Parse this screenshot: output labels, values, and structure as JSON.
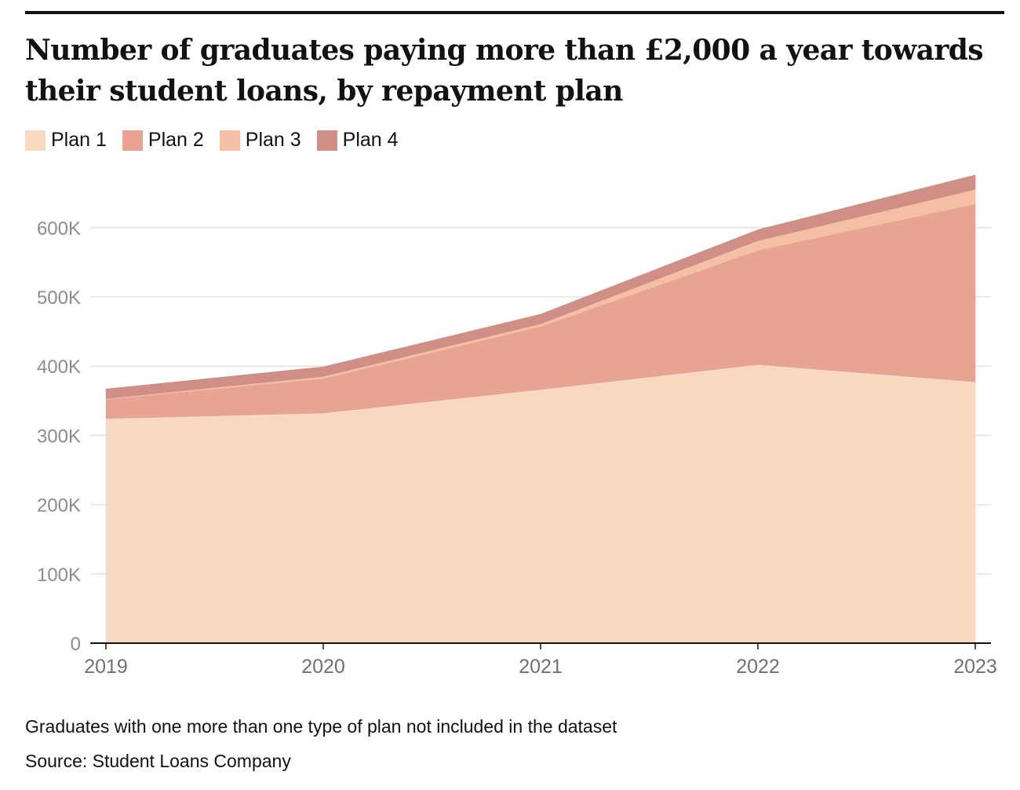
{
  "title": "Number of graduates paying more than £2,000 a year towards their student loans, by repayment plan",
  "legend": [
    {
      "label": "Plan 1",
      "color": "#f7d9c1"
    },
    {
      "label": "Plan 2",
      "color": "#e8a493"
    },
    {
      "label": "Plan 3",
      "color": "#f5bfa4"
    },
    {
      "label": "Plan 4",
      "color": "#cf8f87"
    }
  ],
  "footnote": "Graduates with one more than one type of plan not included in the dataset",
  "source": "Source: Student Loans Company",
  "chart_data": {
    "type": "area",
    "stacked": true,
    "title": "Number of graduates paying more than £2,000 a year towards their student loans, by repayment plan",
    "x": [
      "2019",
      "2020",
      "2021",
      "2022",
      "2023"
    ],
    "series": [
      {
        "name": "Plan 1",
        "color": "#f7d9c1",
        "values": [
          324000,
          332000,
          366000,
          402000,
          377000
        ]
      },
      {
        "name": "Plan 2",
        "color": "#e8a493",
        "values": [
          28000,
          50000,
          91000,
          165000,
          257000
        ]
      },
      {
        "name": "Plan 3",
        "color": "#f5bfa4",
        "values": [
          1000,
          3000,
          4000,
          14000,
          21000
        ]
      },
      {
        "name": "Plan 4",
        "color": "#cf8f87",
        "values": [
          14000,
          14000,
          14000,
          16000,
          21000
        ]
      }
    ],
    "ylim": [
      0,
      700000
    ],
    "yticks": [
      0,
      100000,
      200000,
      300000,
      400000,
      500000,
      600000
    ],
    "ytick_labels": [
      "0",
      "100K",
      "200K",
      "300K",
      "400K",
      "500K",
      "600K"
    ],
    "xlabel": "",
    "ylabel": "",
    "grid": true,
    "legend_position": "top-left"
  }
}
